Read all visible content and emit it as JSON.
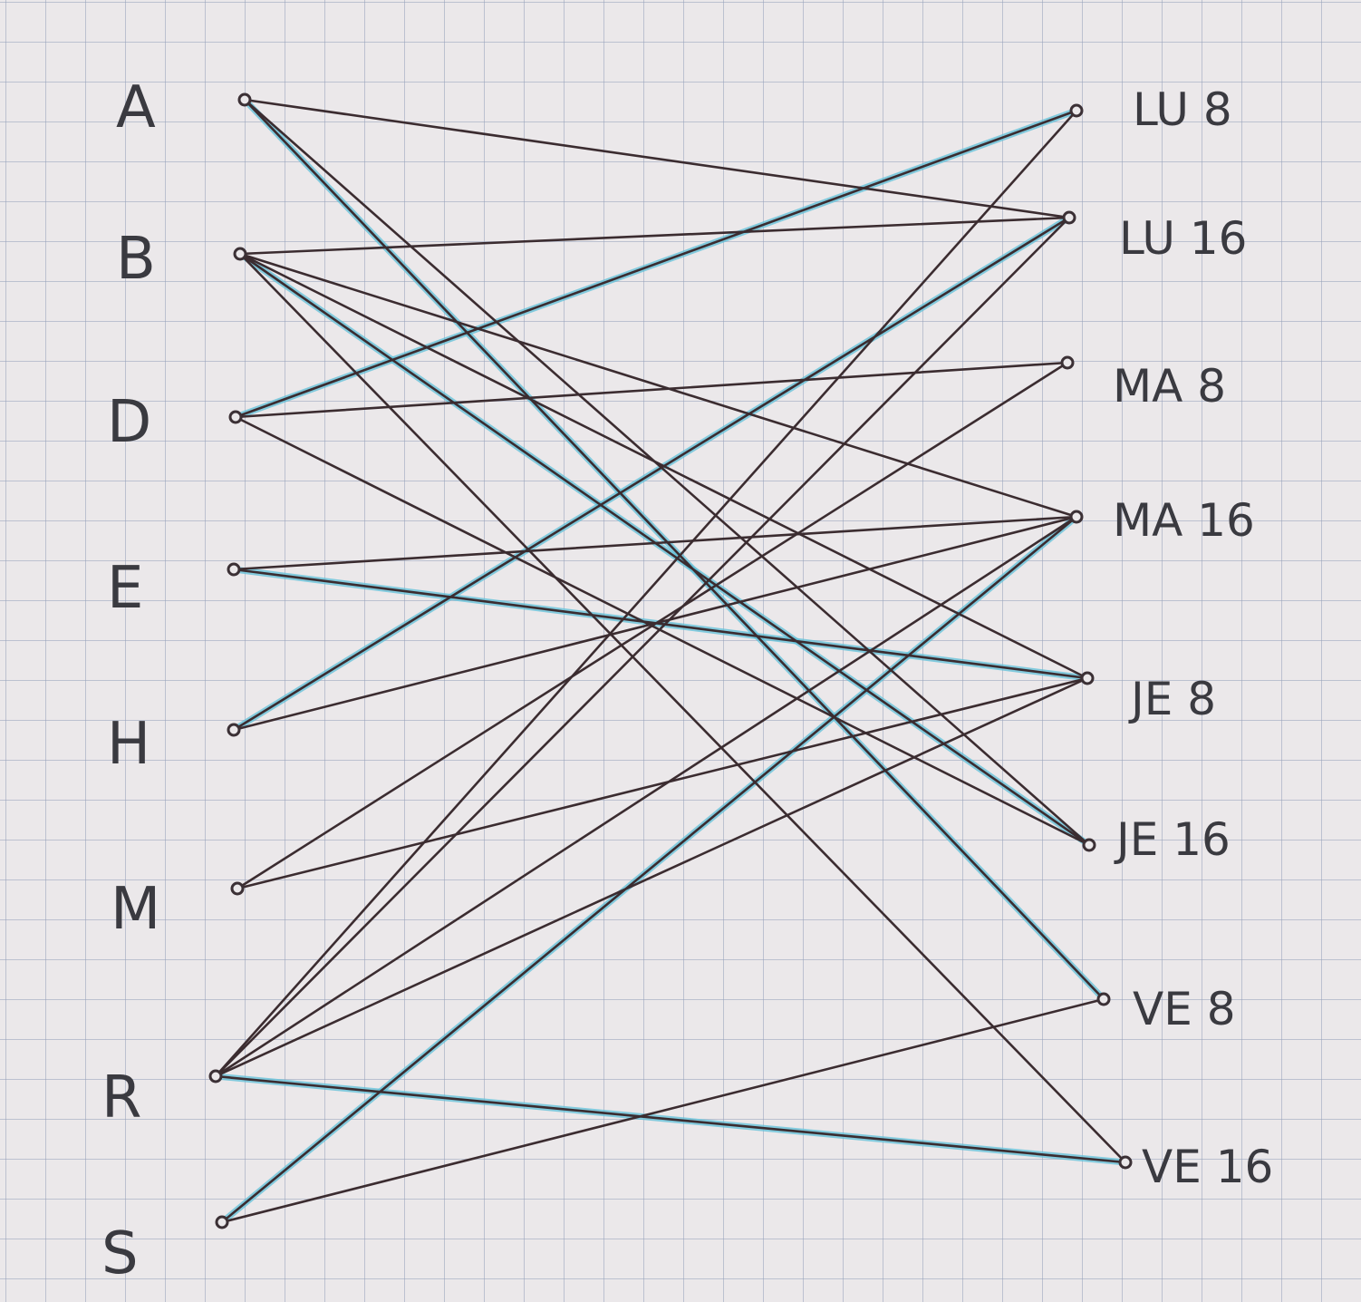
{
  "left_nodes": [
    {
      "id": "A",
      "label": "A"
    },
    {
      "id": "B",
      "label": "B"
    },
    {
      "id": "D",
      "label": "D"
    },
    {
      "id": "E",
      "label": "E"
    },
    {
      "id": "H",
      "label": "H"
    },
    {
      "id": "M",
      "label": "M"
    },
    {
      "id": "R",
      "label": "R"
    },
    {
      "id": "S",
      "label": "S"
    }
  ],
  "right_nodes": [
    {
      "id": "LU8",
      "label": "LU 8"
    },
    {
      "id": "LU16",
      "label": "LU 16"
    },
    {
      "id": "MA8",
      "label": "MA 8"
    },
    {
      "id": "MA16",
      "label": "MA 16"
    },
    {
      "id": "JE8",
      "label": "JE 8"
    },
    {
      "id": "JE16",
      "label": "JE 16"
    },
    {
      "id": "VE8",
      "label": "VE 8"
    },
    {
      "id": "VE16",
      "label": "VE 16"
    }
  ],
  "edges": [
    [
      "A",
      "LU16"
    ],
    [
      "A",
      "VE8"
    ],
    [
      "A",
      "JE16"
    ],
    [
      "B",
      "LU16"
    ],
    [
      "B",
      "MA16"
    ],
    [
      "B",
      "JE8"
    ],
    [
      "B",
      "JE16"
    ],
    [
      "B",
      "VE16"
    ],
    [
      "D",
      "LU8"
    ],
    [
      "D",
      "MA8"
    ],
    [
      "D",
      "JE16"
    ],
    [
      "E",
      "MA16"
    ],
    [
      "E",
      "JE8"
    ],
    [
      "H",
      "LU16"
    ],
    [
      "H",
      "MA16"
    ],
    [
      "M",
      "MA8"
    ],
    [
      "M",
      "JE8"
    ],
    [
      "R",
      "LU8"
    ],
    [
      "R",
      "LU16"
    ],
    [
      "R",
      "MA16"
    ],
    [
      "R",
      "JE8"
    ],
    [
      "R",
      "VE16"
    ],
    [
      "S",
      "MA16"
    ],
    [
      "S",
      "VE8"
    ]
  ],
  "highlighted_edges": [
    [
      "A",
      "VE8"
    ],
    [
      "B",
      "JE16"
    ],
    [
      "D",
      "LU8"
    ],
    [
      "E",
      "JE8"
    ],
    [
      "H",
      "LU16"
    ],
    [
      "R",
      "VE16"
    ],
    [
      "S",
      "MA16"
    ]
  ],
  "colors": {
    "ink": "#3b2c30",
    "highlight": "#5fc0d8",
    "paper": "#ebe8ea",
    "grid": "#969fb9"
  }
}
